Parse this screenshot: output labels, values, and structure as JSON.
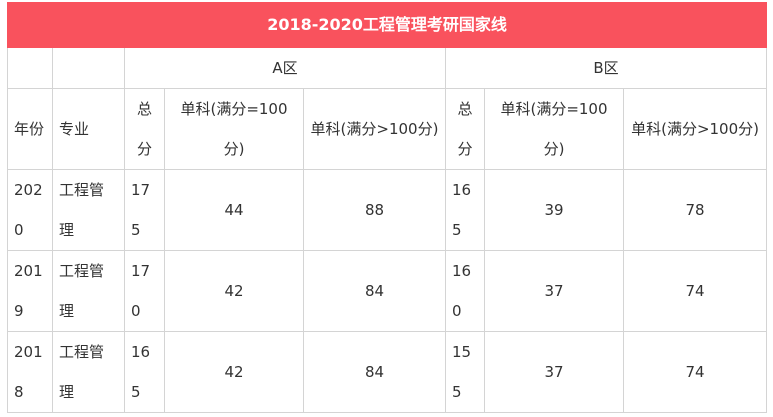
{
  "header": {
    "title": "2018-2020工程管理考研国家线"
  },
  "table": {
    "zones": [
      "A区",
      "B区"
    ],
    "columns": [
      "年份",
      "专业",
      "总分",
      "单科(满分=100分)",
      "单科(满分>100分)",
      "总分",
      "单科(满分=100分)",
      "单科(满分>100分)"
    ],
    "rows": [
      [
        2020,
        "工程管理",
        175,
        44,
        88,
        165,
        39,
        78
      ],
      [
        2019,
        "工程管理",
        170,
        42,
        84,
        160,
        37,
        74
      ],
      [
        2018,
        "工程管理",
        165,
        42,
        84,
        155,
        37,
        74
      ]
    ]
  }
}
